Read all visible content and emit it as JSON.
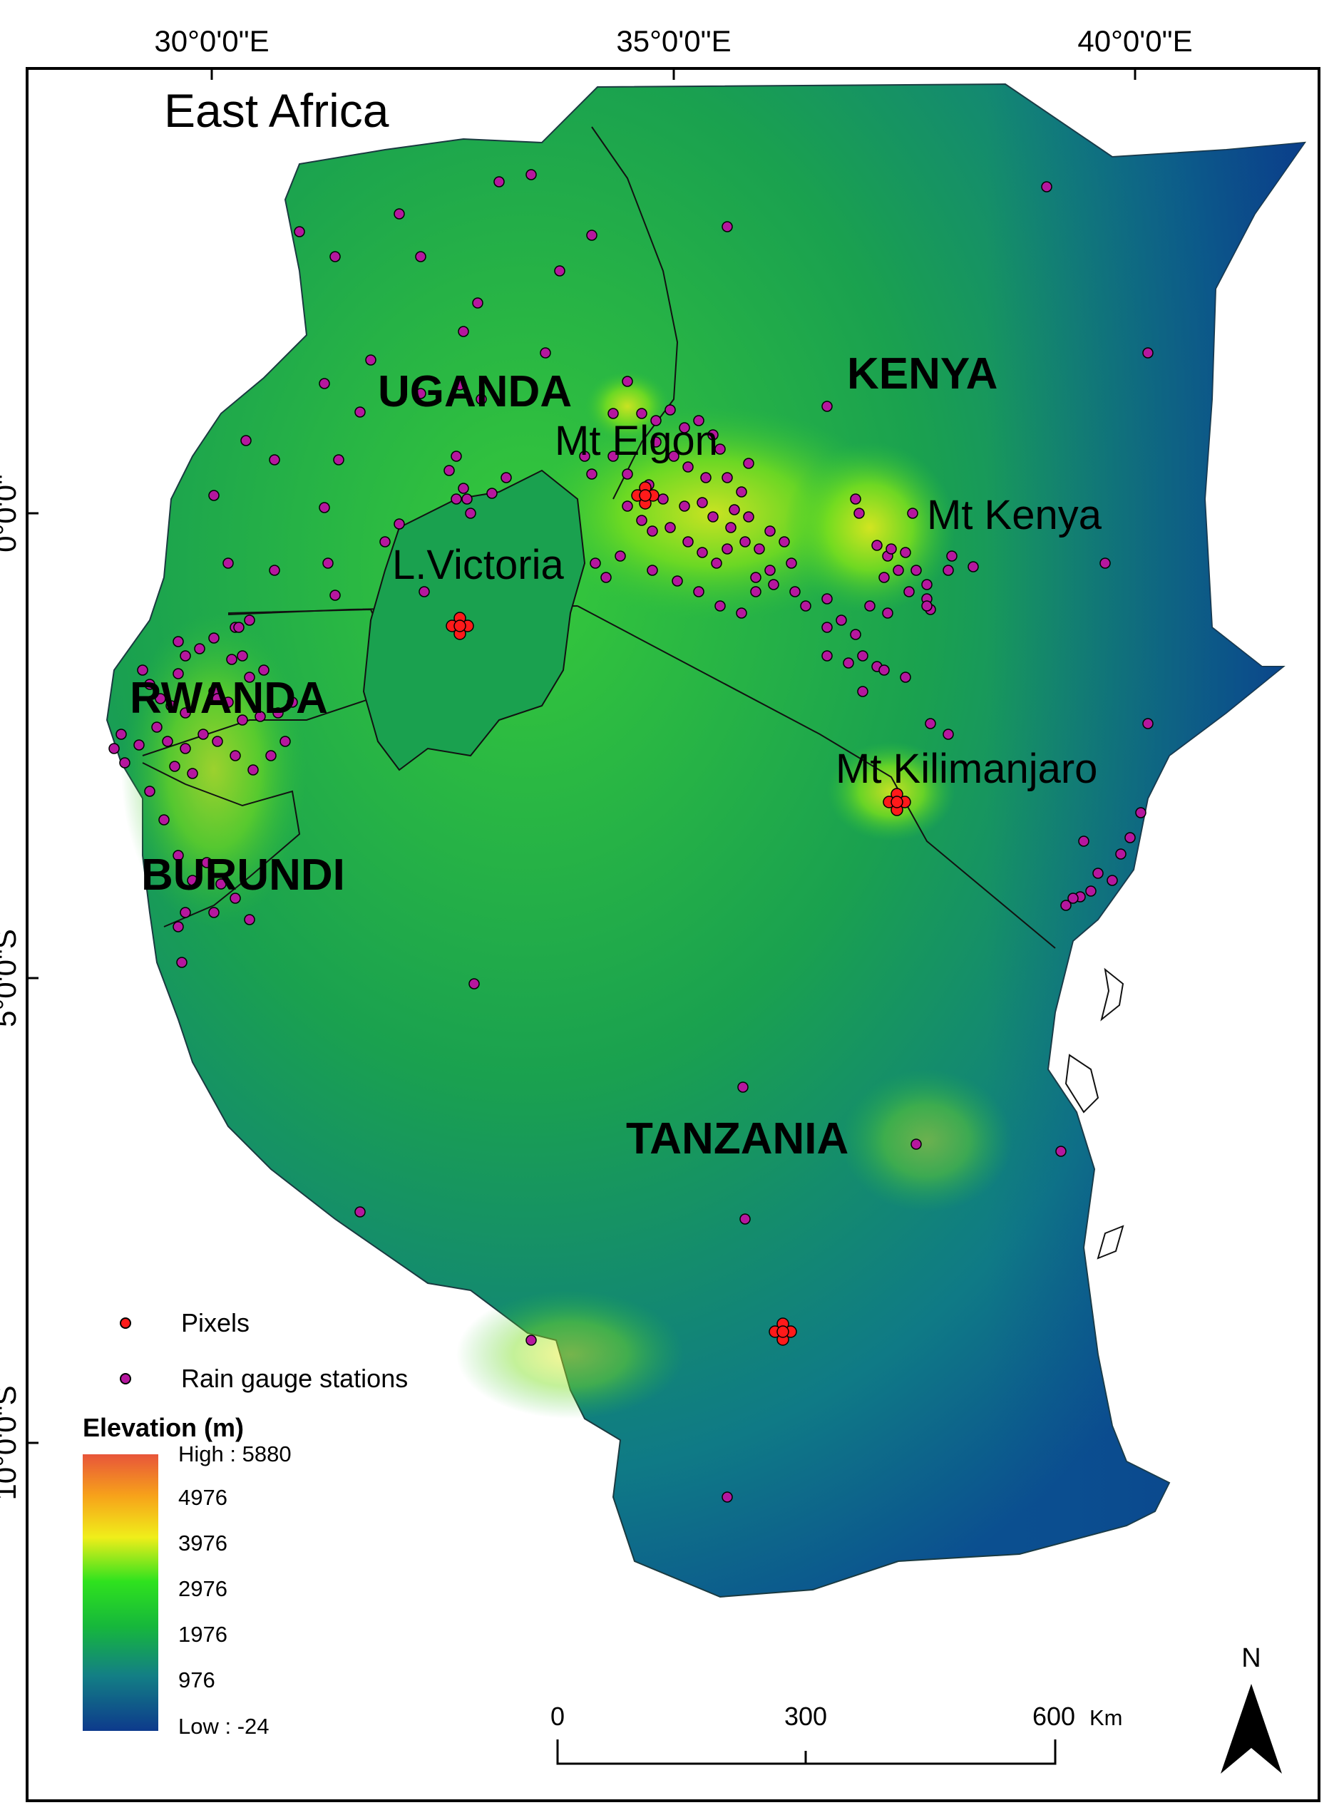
{
  "map": {
    "title": "East Africa",
    "axes": {
      "top_ticks": [
        "30°0'0\"E",
        "35°0'0\"E",
        "40°0'0\"E"
      ],
      "left_ticks": [
        "0°0'0\"",
        "5°0'0\"S",
        "10°0'0\"S"
      ]
    },
    "countries": [
      "UGANDA",
      "KENYA",
      "RWANDA",
      "BURUNDI",
      "TANZANIA"
    ],
    "features": [
      "Mt Elgon",
      "Mt Kenya",
      "L.Victoria",
      "Mt Kilimanjaro"
    ],
    "legend": {
      "pixels_label": "Pixels",
      "gauges_label": "Rain gauge stations",
      "pixel_color": "#ff1a1a",
      "gauge_color": "#b5179e"
    },
    "elevation": {
      "title": "Elevation (m)",
      "labels": [
        "High : 5880",
        "4976",
        "3976",
        "2976",
        "1976",
        "976",
        "Low : -24"
      ],
      "colors": [
        "#e8553a",
        "#f7a21a",
        "#f0ee1a",
        "#2fe21e",
        "#16b83b",
        "#137f85",
        "#0d3a8c"
      ]
    },
    "scale_bar": {
      "labels": [
        "0",
        "300",
        "600"
      ],
      "unit": "Km"
    },
    "north_arrow": {
      "label": "N"
    }
  }
}
